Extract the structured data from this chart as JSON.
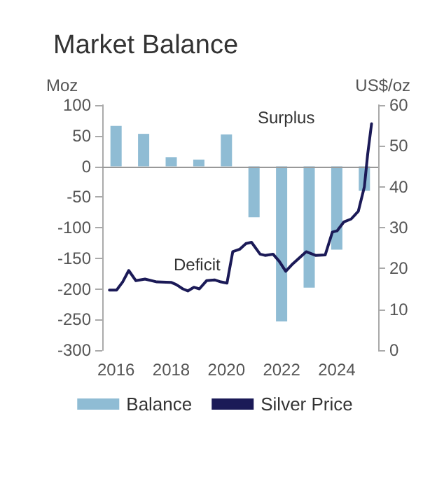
{
  "chart_data": {
    "type": "bar",
    "title": "Market Balance",
    "ylabel": "Moz",
    "y2label": "US$/oz",
    "x": [
      2016,
      2017,
      2018,
      2019,
      2020,
      2021,
      2022,
      2023,
      2024,
      2025
    ],
    "xlim": [
      2015.5,
      2025.5
    ],
    "xticks": [
      2016,
      2018,
      2020,
      2022,
      2024
    ],
    "ylim": [
      -300,
      100
    ],
    "yticks": [
      -300,
      -250,
      -200,
      -150,
      -100,
      -50,
      0,
      50,
      100
    ],
    "y2lim": [
      0,
      60
    ],
    "y2ticks": [
      0,
      10,
      20,
      30,
      40,
      50,
      60
    ],
    "series": [
      {
        "name": "Balance",
        "color": "#8fbcd4",
        "values": [
          66,
          53,
          15,
          11,
          52,
          -83,
          -253,
          -198,
          -136,
          -40
        ]
      },
      {
        "name": "Silver Price",
        "type": "line",
        "axis": "y2",
        "color": "#1b1a57",
        "x": [
          2015.76,
          2016.02,
          2016.24,
          2016.46,
          2016.72,
          2017.05,
          2017.48,
          2017.99,
          2018.17,
          2018.42,
          2018.6,
          2018.82,
          2019.02,
          2019.28,
          2019.57,
          2019.8,
          2020.02,
          2020.23,
          2020.48,
          2020.71,
          2020.91,
          2021.22,
          2021.4,
          2021.69,
          2021.91,
          2022.15,
          2022.37,
          2022.89,
          2023.23,
          2023.58,
          2023.84,
          2024.01,
          2024.26,
          2024.52,
          2024.78,
          2025.0,
          2025.12,
          2025.26
        ],
        "values": [
          14.7,
          14.7,
          16.7,
          19.5,
          17.0,
          17.4,
          16.7,
          16.6,
          16.1,
          15.0,
          14.5,
          15.4,
          15.0,
          17.0,
          17.2,
          16.7,
          16.4,
          24.1,
          24.7,
          26.1,
          26.4,
          23.5,
          23.2,
          23.5,
          21.8,
          19.3,
          20.9,
          24.1,
          23.2,
          23.3,
          28.9,
          29.2,
          31.4,
          32.1,
          34.0,
          40.0,
          48.0,
          55.4
        ]
      }
    ],
    "ref_lines": [
      {
        "axis": "y",
        "value": 0,
        "color": "#999999"
      }
    ],
    "annotations": [
      "Surplus",
      "Deficit"
    ],
    "legend": "bottom",
    "grid": false,
    "marker": "none",
    "line_style": "solid"
  }
}
